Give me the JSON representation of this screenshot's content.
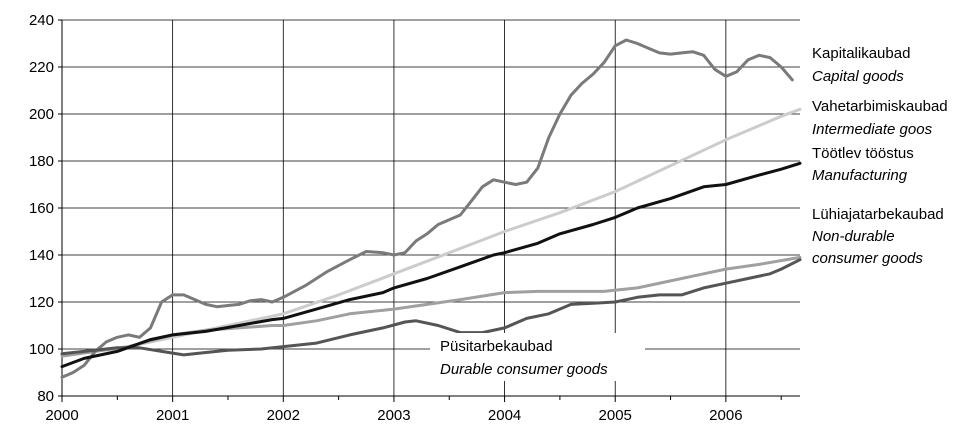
{
  "chart_data": {
    "type": "line",
    "xlim": [
      2000,
      2006.67
    ],
    "ylim": [
      80,
      240
    ],
    "grid": true,
    "x_ticks": [
      "2000",
      "2001",
      "2002",
      "2003",
      "2004",
      "2005",
      "2006"
    ],
    "y_ticks": [
      "80",
      "100",
      "120",
      "140",
      "160",
      "180",
      "200",
      "220",
      "240"
    ],
    "series": [
      {
        "key": "capital",
        "name_et": "Kapitalikaubad",
        "name_en": "Capital goods",
        "color": "#7a7a7a",
        "points": [
          [
            2000,
            88
          ],
          [
            2000.1,
            90
          ],
          [
            2000.2,
            93
          ],
          [
            2000.3,
            99
          ],
          [
            2000.4,
            103
          ],
          [
            2000.5,
            105
          ],
          [
            2000.6,
            106
          ],
          [
            2000.7,
            105
          ],
          [
            2000.8,
            109
          ],
          [
            2000.9,
            120
          ],
          [
            2001.0,
            123
          ],
          [
            2001.1,
            123
          ],
          [
            2001.2,
            121
          ],
          [
            2001.3,
            119
          ],
          [
            2001.4,
            118
          ],
          [
            2001.5,
            118.5
          ],
          [
            2001.6,
            119
          ],
          [
            2001.7,
            120.5
          ],
          [
            2001.8,
            121
          ],
          [
            2001.9,
            120
          ],
          [
            2002.0,
            122
          ],
          [
            2002.2,
            127
          ],
          [
            2002.4,
            133
          ],
          [
            2002.6,
            138
          ],
          [
            2002.75,
            141.5
          ],
          [
            2002.9,
            141
          ],
          [
            2003.0,
            140
          ],
          [
            2003.1,
            141
          ],
          [
            2003.2,
            146
          ],
          [
            2003.3,
            149
          ],
          [
            2003.4,
            153
          ],
          [
            2003.5,
            155
          ],
          [
            2003.6,
            157
          ],
          [
            2003.7,
            163
          ],
          [
            2003.8,
            169
          ],
          [
            2003.9,
            172
          ],
          [
            2004.0,
            171
          ],
          [
            2004.1,
            170
          ],
          [
            2004.2,
            171
          ],
          [
            2004.3,
            177
          ],
          [
            2004.4,
            190
          ],
          [
            2004.5,
            200
          ],
          [
            2004.6,
            208
          ],
          [
            2004.7,
            213
          ],
          [
            2004.8,
            217
          ],
          [
            2004.9,
            222
          ],
          [
            2005.0,
            229
          ],
          [
            2005.1,
            231.5
          ],
          [
            2005.2,
            230
          ],
          [
            2005.3,
            228
          ],
          [
            2005.4,
            226
          ],
          [
            2005.5,
            225.5
          ],
          [
            2005.6,
            226
          ],
          [
            2005.7,
            226.5
          ],
          [
            2005.8,
            225
          ],
          [
            2005.9,
            219
          ],
          [
            2006.0,
            216
          ],
          [
            2006.1,
            218
          ],
          [
            2006.2,
            223
          ],
          [
            2006.3,
            225
          ],
          [
            2006.4,
            224
          ],
          [
            2006.5,
            220
          ],
          [
            2006.6,
            214.5
          ]
        ]
      },
      {
        "key": "intermediate",
        "name_et": "Vahetarbimiskaubad",
        "name_en": "Intermediate goos",
        "color": "#cccccc",
        "points": [
          [
            2000,
            98
          ],
          [
            2000.5,
            100
          ],
          [
            2001.0,
            105
          ],
          [
            2001.5,
            110
          ],
          [
            2002.0,
            115
          ],
          [
            2002.5,
            123
          ],
          [
            2003.0,
            132
          ],
          [
            2003.5,
            141
          ],
          [
            2004.0,
            150
          ],
          [
            2004.5,
            158
          ],
          [
            2005.0,
            167
          ],
          [
            2005.5,
            178
          ],
          [
            2006.0,
            189
          ],
          [
            2006.5,
            199
          ],
          [
            2006.67,
            202
          ]
        ]
      },
      {
        "key": "manufacturing",
        "name_et": "Töötlev tööstus",
        "name_en": "Manufacturing",
        "color": "#111111",
        "points": [
          [
            2000,
            92.5
          ],
          [
            2000.2,
            96
          ],
          [
            2000.5,
            99
          ],
          [
            2000.8,
            104
          ],
          [
            2001.0,
            106
          ],
          [
            2001.3,
            107.5
          ],
          [
            2001.6,
            110
          ],
          [
            2001.9,
            112.5
          ],
          [
            2002.0,
            113
          ],
          [
            2002.3,
            117
          ],
          [
            2002.6,
            121
          ],
          [
            2002.9,
            124
          ],
          [
            2003.0,
            126
          ],
          [
            2003.3,
            130
          ],
          [
            2003.6,
            135
          ],
          [
            2003.9,
            140
          ],
          [
            2004.0,
            141
          ],
          [
            2004.3,
            145
          ],
          [
            2004.5,
            149
          ],
          [
            2004.8,
            153
          ],
          [
            2005.0,
            156
          ],
          [
            2005.2,
            160
          ],
          [
            2005.5,
            164
          ],
          [
            2005.8,
            169
          ],
          [
            2006.0,
            170
          ],
          [
            2006.3,
            174
          ],
          [
            2006.5,
            176.5
          ],
          [
            2006.67,
            179
          ]
        ]
      },
      {
        "key": "nondurable",
        "name_et": "Lühiajatarbekaubad",
        "name_en_lines": [
          "Non-durable",
          "consumer goods"
        ],
        "color": "#a0a0a0",
        "points": [
          [
            2000,
            97
          ],
          [
            2000.3,
            99
          ],
          [
            2000.6,
            101
          ],
          [
            2001.0,
            106
          ],
          [
            2001.3,
            108
          ],
          [
            2001.6,
            109
          ],
          [
            2001.9,
            110
          ],
          [
            2002.0,
            110
          ],
          [
            2002.3,
            112
          ],
          [
            2002.6,
            115
          ],
          [
            2003.0,
            117
          ],
          [
            2003.3,
            119
          ],
          [
            2003.6,
            121
          ],
          [
            2004.0,
            124
          ],
          [
            2004.3,
            124.5
          ],
          [
            2004.6,
            124.5
          ],
          [
            2004.9,
            124.5
          ],
          [
            2005.2,
            126
          ],
          [
            2005.5,
            129
          ],
          [
            2005.8,
            132
          ],
          [
            2006.0,
            134
          ],
          [
            2006.3,
            136
          ],
          [
            2006.67,
            139
          ]
        ]
      },
      {
        "key": "durable",
        "name_et": "Püsitarbekaubad",
        "name_en": "Durable consumer goods",
        "color": "#555555",
        "points": [
          [
            2000,
            98
          ],
          [
            2000.2,
            99
          ],
          [
            2000.5,
            100.5
          ],
          [
            2000.7,
            100.5
          ],
          [
            2000.9,
            99
          ],
          [
            2001.1,
            97.5
          ],
          [
            2001.3,
            98.5
          ],
          [
            2001.5,
            99.5
          ],
          [
            2001.8,
            100
          ],
          [
            2002.0,
            101
          ],
          [
            2002.3,
            102.5
          ],
          [
            2002.6,
            106
          ],
          [
            2002.9,
            109
          ],
          [
            2003.1,
            111.5
          ],
          [
            2003.2,
            112
          ],
          [
            2003.4,
            110
          ],
          [
            2003.6,
            107
          ],
          [
            2003.8,
            107
          ],
          [
            2004.0,
            109
          ],
          [
            2004.2,
            113
          ],
          [
            2004.4,
            115
          ],
          [
            2004.6,
            119
          ],
          [
            2004.8,
            119.5
          ],
          [
            2005.0,
            120
          ],
          [
            2005.2,
            122
          ],
          [
            2005.4,
            123
          ],
          [
            2005.6,
            123
          ],
          [
            2005.8,
            126
          ],
          [
            2006.0,
            128
          ],
          [
            2006.2,
            130
          ],
          [
            2006.4,
            132
          ],
          [
            2006.5,
            134
          ],
          [
            2006.67,
            138
          ]
        ]
      }
    ]
  }
}
